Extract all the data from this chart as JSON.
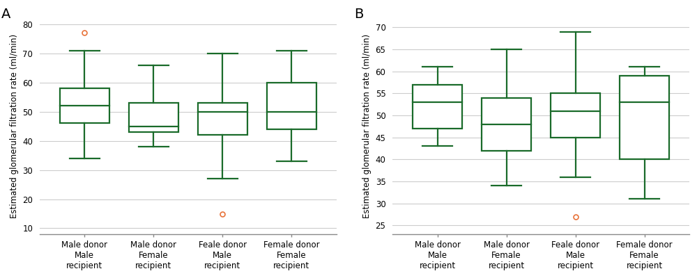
{
  "panel_A": {
    "title": "A",
    "ylabel": "Estimated glomerular filtration rate (ml/min)",
    "ylim": [
      8,
      82
    ],
    "yticks": [
      10,
      20,
      30,
      40,
      50,
      60,
      70,
      80
    ],
    "categories": [
      "Male donor\nMale\nrecipient",
      "Male donor\nFemale\nrecipient",
      "Feale donor\nMale\nrecipient",
      "Female donor\nFemale\nrecipient"
    ],
    "boxes": [
      {
        "whisker_low": 34,
        "q1": 46,
        "median": 52,
        "q3": 58,
        "whisker_high": 71,
        "outliers": [
          77
        ]
      },
      {
        "whisker_low": 38,
        "q1": 43,
        "median": 45,
        "q3": 53,
        "whisker_high": 66,
        "outliers": []
      },
      {
        "whisker_low": 27,
        "q1": 42,
        "median": 50,
        "q3": 53,
        "whisker_high": 70,
        "outliers": [
          15
        ]
      },
      {
        "whisker_low": 33,
        "q1": 44,
        "median": 50,
        "q3": 60,
        "whisker_high": 71,
        "outliers": []
      }
    ]
  },
  "panel_B": {
    "title": "B",
    "ylabel": "Estimated glomerular filtration rate (ml/min)",
    "ylim": [
      23,
      72
    ],
    "yticks": [
      25,
      30,
      35,
      40,
      45,
      50,
      55,
      60,
      65,
      70
    ],
    "categories": [
      "Male donor\nMale\nrecipient",
      "Male donor\nFemale\nrecipient",
      "Feale donor\nMale\nrecipient",
      "Female donor\nFemale\nrecipient"
    ],
    "boxes": [
      {
        "whisker_low": 43,
        "q1": 47,
        "median": 53,
        "q3": 57,
        "whisker_high": 61,
        "outliers": []
      },
      {
        "whisker_low": 34,
        "q1": 42,
        "median": 48,
        "q3": 54,
        "whisker_high": 65,
        "outliers": []
      },
      {
        "whisker_low": 36,
        "q1": 45,
        "median": 51,
        "q3": 55,
        "whisker_high": 69,
        "outliers": [
          27
        ]
      },
      {
        "whisker_low": 31,
        "q1": 40,
        "median": 53,
        "q3": 59,
        "whisker_high": 61,
        "outliers": []
      }
    ]
  },
  "box_color": "#1a6b2a",
  "outlier_color": "#e8733a",
  "background_color": "#ffffff",
  "grid_color": "#cccccc",
  "box_width": 0.72,
  "linewidth": 1.6,
  "cap_ratio": 0.6,
  "title_fontsize": 14,
  "label_fontsize": 8.5,
  "tick_fontsize": 8.5
}
